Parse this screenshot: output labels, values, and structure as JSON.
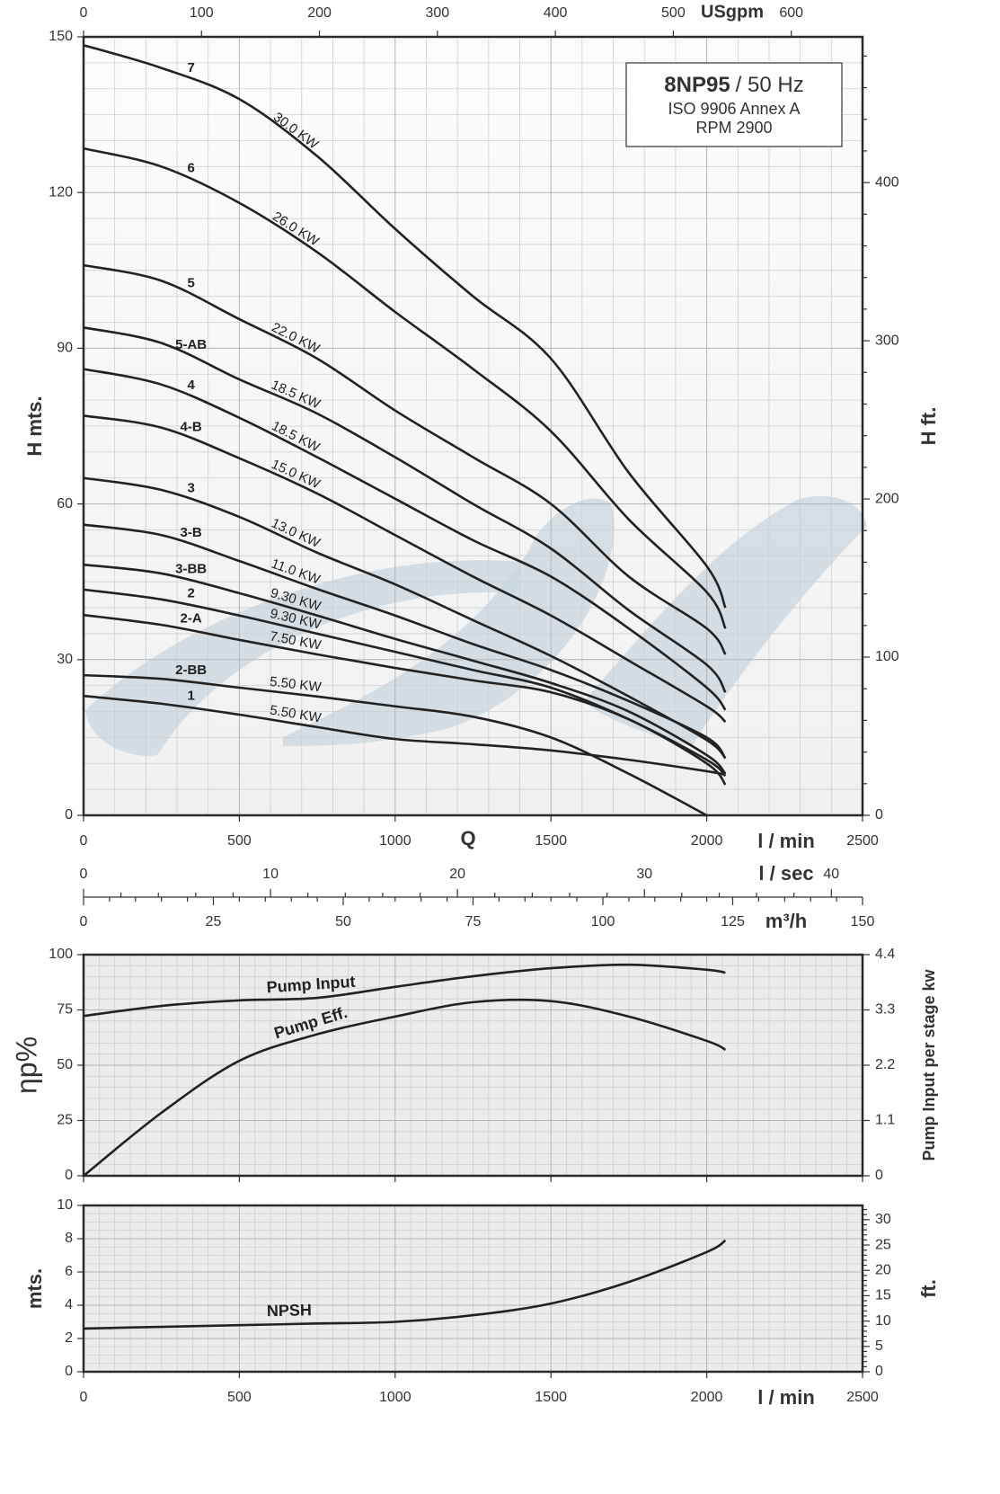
{
  "chart_data": [
    {
      "type": "line",
      "color": "#222222",
      "grid": true,
      "show_xtick_labels": true,
      "ylabel": "H mts.",
      "y2label": "H ft.",
      "q_label": "Q",
      "xlabel": "l / min",
      "xlim": [
        0,
        2500
      ],
      "xticks": [
        0,
        500,
        1000,
        1500,
        2000,
        2500
      ],
      "ylim": [
        0,
        150
      ],
      "yticks": [
        0,
        30,
        60,
        90,
        120,
        150
      ],
      "y2lim": [
        0,
        492.13
      ],
      "y2ticks": [
        0,
        100,
        200,
        300,
        400
      ],
      "top_axis": {
        "label": "USgpm",
        "lim": [
          0,
          660.43
        ],
        "ticks": [
          0,
          100,
          200,
          300,
          400,
          500,
          600
        ]
      },
      "flow_axes": [
        {
          "label": "l / sec",
          "lim": [
            0,
            41.667
          ],
          "ticks": [
            0,
            10,
            20,
            30,
            40
          ]
        },
        {
          "label": "m³/h",
          "lim": [
            0,
            150
          ],
          "ticks": [
            0,
            25,
            50,
            75,
            100,
            125,
            150
          ]
        }
      ],
      "info": {
        "model": "8NP95",
        "freq": "/ 50 Hz",
        "standard": "ISO 9906 Annex A",
        "rpm": "RPM 2900"
      },
      "x": [
        0,
        250,
        500,
        750,
        1000,
        1250,
        1500,
        1750,
        2000,
        2060
      ],
      "series": [
        {
          "name": "7",
          "power": "30.0 KW",
          "values": [
            148.4,
            144,
            138,
            127,
            113,
            100,
            88,
            66,
            48,
            40
          ]
        },
        {
          "name": "6",
          "power": "26.0 KW",
          "values": [
            128.5,
            125,
            118,
            108.5,
            97,
            86,
            74,
            57,
            43,
            36
          ]
        },
        {
          "name": "5",
          "power": "22.0 KW",
          "values": [
            106,
            103,
            95.6,
            88,
            78,
            69,
            60,
            46,
            36,
            31
          ]
        },
        {
          "name": "5-AB",
          "power": "18.5 KW",
          "values": [
            94,
            91,
            84,
            77.4,
            69,
            60,
            51.4,
            39.5,
            29,
            23.7
          ]
        },
        {
          "name": "4",
          "power": "18.5 KW",
          "values": [
            86,
            83,
            76.6,
            69,
            61,
            53,
            46,
            36,
            24.6,
            20.3
          ]
        },
        {
          "name": "4-B",
          "power": "15.0 KW",
          "values": [
            77,
            74.7,
            68.8,
            62,
            54,
            46,
            38.5,
            29.8,
            21,
            18
          ]
        },
        {
          "name": "3",
          "power": "13.0 KW",
          "values": [
            65,
            62.7,
            57.5,
            50.6,
            44.5,
            37.6,
            30.7,
            22.9,
            14.5,
            11
          ]
        },
        {
          "name": "3-B",
          "power": "11.0 KW",
          "values": [
            56,
            54,
            49,
            43.6,
            38.5,
            33,
            28,
            22,
            15,
            11
          ]
        },
        {
          "name": "3-BB",
          "power": "9.30 KW",
          "values": [
            48.3,
            46.6,
            42.8,
            38.5,
            34,
            29.8,
            25.5,
            20,
            11.6,
            8
          ]
        },
        {
          "name": "2",
          "power": "9.30 KW",
          "values": [
            43.5,
            41.6,
            38.5,
            35,
            31.5,
            28,
            24.6,
            18.5,
            10.7,
            7.6
          ]
        },
        {
          "name": "2-A",
          "power": "7.50 KW",
          "values": [
            38.6,
            36.7,
            33.8,
            31,
            28.4,
            26,
            23.7,
            18.5,
            10,
            5.9
          ]
        },
        {
          "name": "2-BB",
          "power": "5.50 KW",
          "values": [
            27,
            26.3,
            24.6,
            22.9,
            21,
            19,
            15,
            8,
            0,
            null
          ]
        },
        {
          "name": "1",
          "power": "5.50 KW",
          "values": [
            23,
            21.5,
            19.4,
            17,
            14.7,
            13.7,
            12.5,
            10.7,
            8.5,
            7.8
          ]
        }
      ]
    },
    {
      "type": "line",
      "color": "#222222",
      "grid": true,
      "show_xtick_labels": false,
      "ylabel": "ηp%",
      "y2label": "Pump Input per stage kw",
      "xlim": [
        0,
        2500
      ],
      "xticks": [
        0,
        500,
        1000,
        1500,
        2000,
        2500
      ],
      "ylim": [
        0,
        100
      ],
      "yticks": [
        0,
        25,
        50,
        75,
        100
      ],
      "y2lim": [
        0,
        4.4
      ],
      "y2ticks": [
        0,
        1.1,
        2.2,
        3.3,
        4.4
      ],
      "x": [
        0,
        250,
        500,
        750,
        1000,
        1250,
        1500,
        1750,
        2000,
        2060
      ],
      "series": [
        {
          "name": "Pump Input",
          "axis": "y2",
          "values": [
            3.18,
            3.38,
            3.49,
            3.54,
            3.76,
            3.97,
            4.13,
            4.2,
            4.1,
            4.04
          ]
        },
        {
          "name": "Pump Eff.",
          "values": [
            0,
            28.5,
            52,
            64,
            72,
            78.5,
            79,
            72,
            61,
            57
          ]
        }
      ]
    },
    {
      "type": "line",
      "color": "#222222",
      "grid": true,
      "show_xtick_labels": true,
      "ylabel": "mts.",
      "y2label": "ft.",
      "xlabel": "l / min",
      "xlim": [
        0,
        2500
      ],
      "xticks": [
        0,
        500,
        1000,
        1500,
        2000,
        2500
      ],
      "ylim": [
        0,
        10
      ],
      "yticks": [
        0,
        2,
        4,
        6,
        8,
        10
      ],
      "y2lim": [
        0,
        32.81
      ],
      "y2ticks": [
        0,
        5,
        10,
        15,
        20,
        25,
        30
      ],
      "x": [
        0,
        250,
        500,
        750,
        1000,
        1250,
        1500,
        1750,
        2000,
        2060
      ],
      "series": [
        {
          "name": "NPSH",
          "values": [
            2.6,
            2.7,
            2.8,
            2.9,
            3.0,
            3.4,
            4.1,
            5.4,
            7.2,
            7.9
          ]
        }
      ]
    }
  ]
}
